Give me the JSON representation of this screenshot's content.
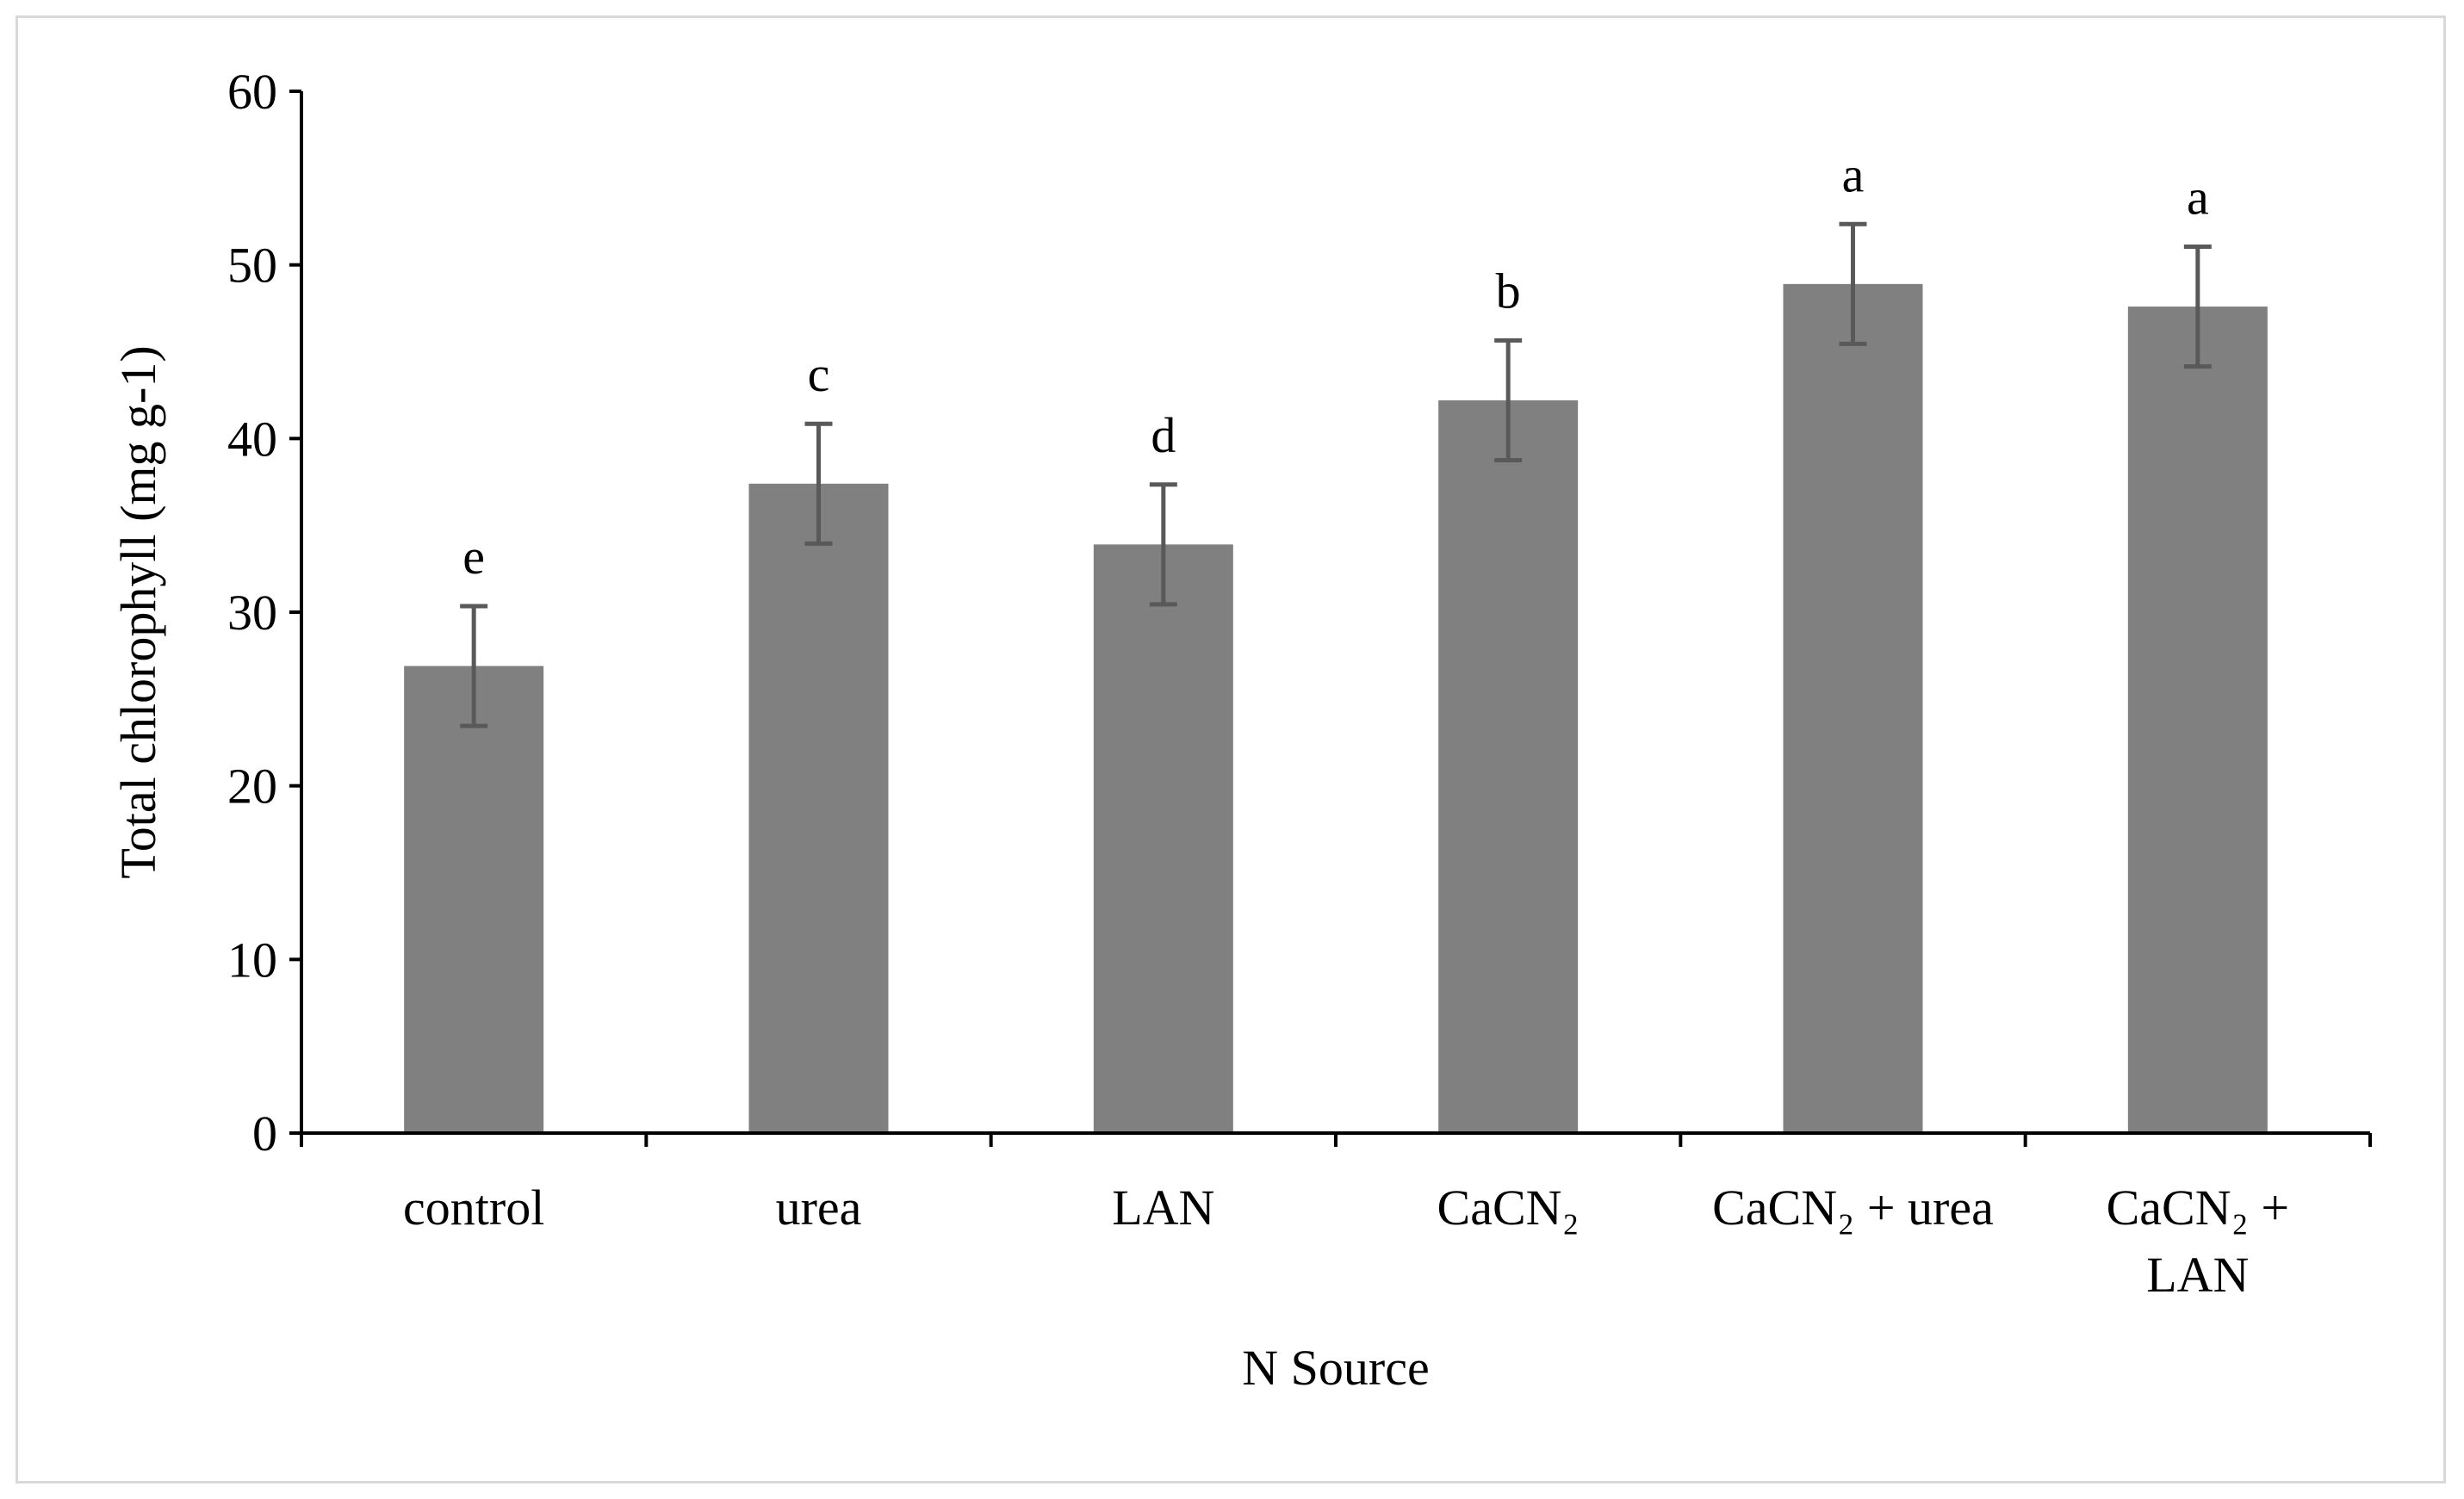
{
  "chart_data": {
    "type": "bar",
    "title": "",
    "xlabel": "N Source",
    "ylabel": "Total chlorophyll (mg g-1)",
    "categories": [
      [
        "control"
      ],
      [
        "urea"
      ],
      [
        "LAN"
      ],
      [
        "CaCN₂"
      ],
      [
        "CaCN₂ + urea"
      ],
      [
        "CaCN₂ +",
        "LAN"
      ]
    ],
    "values": [
      26.9,
      37.4,
      33.9,
      42.2,
      48.9,
      47.6
    ],
    "errors": [
      3.45,
      3.45,
      3.45,
      3.45,
      3.45,
      3.45
    ],
    "significance_letters": [
      "e",
      "c",
      "d",
      "b",
      "a",
      "a"
    ],
    "ylim": [
      0,
      60
    ],
    "yticks": [
      0,
      10,
      20,
      30,
      40,
      50,
      60
    ],
    "grid": false,
    "legend": "none",
    "colors": {
      "bar": "#808080",
      "error_bar": "#595959",
      "axis": "#000000",
      "frame": "#d9d9d9"
    }
  }
}
